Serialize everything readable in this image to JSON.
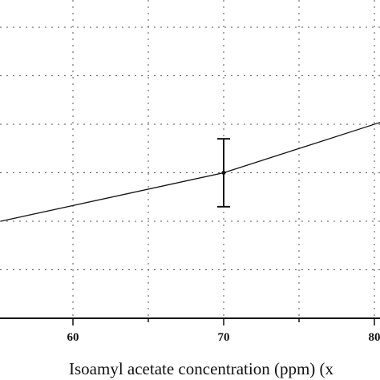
{
  "chart_data": {
    "type": "line",
    "xlabel": "Isoamyl acetate  concentration (ppm) (x",
    "x_ticks": [
      60,
      70,
      80
    ],
    "xlim": [
      55.2,
      80.5
    ],
    "ylim": [
      0,
      7
    ],
    "y_grid_values": [
      1,
      2,
      3,
      4,
      5,
      6
    ],
    "x_grid_values": [
      55,
      60,
      65,
      70,
      75,
      80
    ],
    "grid": true,
    "series": [
      {
        "x": [
          55.2,
          70,
          80.5
        ],
        "y": [
          2.0,
          3.0,
          4.05
        ],
        "error_bars": [
          {
            "x": 70,
            "y": 3.0,
            "err": 0.7
          }
        ]
      }
    ],
    "line_color": "#111111",
    "grid_color": "#555555"
  }
}
